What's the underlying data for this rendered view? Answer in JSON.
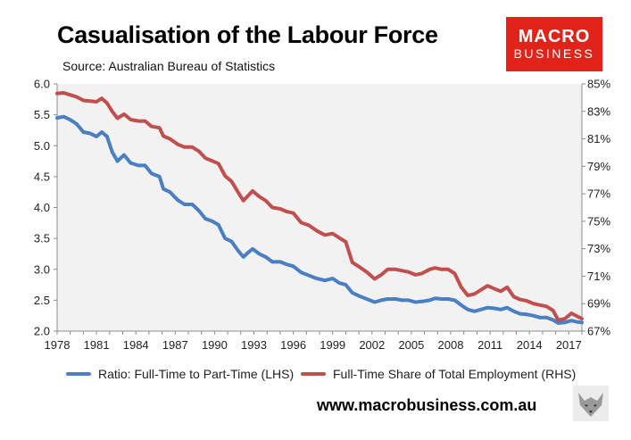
{
  "header": {
    "title": "Casualisation of the Labour Force",
    "subtitle": "Source: Australian Bureau of Statistics"
  },
  "logo": {
    "line1": "MACRO",
    "line2": "BUSINESS",
    "color": "#e2231a"
  },
  "footer": {
    "url": "www.macrobusiness.com.au",
    "icon": "wolf-logo-icon"
  },
  "chart_data": {
    "type": "line",
    "title": "Casualisation of the Labour Force",
    "xlim": [
      1978,
      2018
    ],
    "x_ticks": [
      "1978",
      "1981",
      "1984",
      "1987",
      "1990",
      "1993",
      "1996",
      "1999",
      "2002",
      "2005",
      "2008",
      "2011",
      "2014",
      "2017"
    ],
    "y_left": {
      "range": [
        2.0,
        6.0
      ],
      "ticks": [
        "2.0",
        "2.5",
        "3.0",
        "3.5",
        "4.0",
        "4.5",
        "5.0",
        "5.5",
        "6.0"
      ]
    },
    "y_right": {
      "range": [
        67,
        85
      ],
      "ticks": [
        "67%",
        "69%",
        "71%",
        "73%",
        "75%",
        "77%",
        "79%",
        "81%",
        "83%",
        "85%"
      ]
    },
    "grid": false,
    "legend_position": "bottom",
    "series": [
      {
        "name": "Ratio: Full-Time to Part-Time (LHS)",
        "axis": "left",
        "color": "#4a7fc1",
        "points": [
          [
            1978,
            5.45
          ],
          [
            1978.5,
            5.47
          ],
          [
            1979,
            5.42
          ],
          [
            1979.5,
            5.35
          ],
          [
            1980,
            5.22
          ],
          [
            1980.5,
            5.2
          ],
          [
            1981,
            5.15
          ],
          [
            1981.4,
            5.22
          ],
          [
            1981.8,
            5.15
          ],
          [
            1982.2,
            4.9
          ],
          [
            1982.6,
            4.75
          ],
          [
            1983.1,
            4.85
          ],
          [
            1983.6,
            4.72
          ],
          [
            1984.2,
            4.68
          ],
          [
            1984.7,
            4.68
          ],
          [
            1985.2,
            4.55
          ],
          [
            1985.8,
            4.5
          ],
          [
            1986.1,
            4.3
          ],
          [
            1986.6,
            4.25
          ],
          [
            1987.2,
            4.12
          ],
          [
            1987.7,
            4.05
          ],
          [
            1988.3,
            4.05
          ],
          [
            1988.8,
            3.95
          ],
          [
            1989.3,
            3.82
          ],
          [
            1989.8,
            3.78
          ],
          [
            1990.3,
            3.72
          ],
          [
            1990.8,
            3.5
          ],
          [
            1991.3,
            3.45
          ],
          [
            1991.8,
            3.3
          ],
          [
            1992.2,
            3.2
          ],
          [
            1992.6,
            3.28
          ],
          [
            1992.9,
            3.33
          ],
          [
            1993.4,
            3.25
          ],
          [
            1993.9,
            3.2
          ],
          [
            1994.4,
            3.12
          ],
          [
            1995,
            3.12
          ],
          [
            1995.5,
            3.08
          ],
          [
            1996,
            3.05
          ],
          [
            1996.6,
            2.95
          ],
          [
            1997.2,
            2.9
          ],
          [
            1997.8,
            2.85
          ],
          [
            1998.4,
            2.82
          ],
          [
            1999,
            2.85
          ],
          [
            1999.5,
            2.78
          ],
          [
            2000,
            2.75
          ],
          [
            2000.5,
            2.62
          ],
          [
            2001,
            2.57
          ],
          [
            2001.6,
            2.52
          ],
          [
            2002.2,
            2.47
          ],
          [
            2002.7,
            2.5
          ],
          [
            2003.2,
            2.52
          ],
          [
            2003.8,
            2.52
          ],
          [
            2004.3,
            2.5
          ],
          [
            2004.8,
            2.5
          ],
          [
            2005.3,
            2.47
          ],
          [
            2005.8,
            2.48
          ],
          [
            2006.4,
            2.5
          ],
          [
            2006.8,
            2.53
          ],
          [
            2007.3,
            2.52
          ],
          [
            2007.8,
            2.52
          ],
          [
            2008.3,
            2.5
          ],
          [
            2008.8,
            2.42
          ],
          [
            2009.3,
            2.35
          ],
          [
            2009.8,
            2.32
          ],
          [
            2010.3,
            2.35
          ],
          [
            2010.8,
            2.38
          ],
          [
            2011.3,
            2.37
          ],
          [
            2011.8,
            2.35
          ],
          [
            2012.3,
            2.38
          ],
          [
            2012.8,
            2.32
          ],
          [
            2013.3,
            2.28
          ],
          [
            2013.8,
            2.27
          ],
          [
            2014.3,
            2.25
          ],
          [
            2014.8,
            2.22
          ],
          [
            2015.3,
            2.22
          ],
          [
            2015.8,
            2.18
          ],
          [
            2016.2,
            2.13
          ],
          [
            2016.7,
            2.14
          ],
          [
            2017.2,
            2.17
          ],
          [
            2017.6,
            2.15
          ],
          [
            2018,
            2.14
          ]
        ]
      },
      {
        "name": "Full-Time Share of Total Employment (RHS)",
        "axis": "right",
        "color": "#c0504d",
        "points": [
          [
            1978,
            84.3
          ],
          [
            1978.5,
            84.35
          ],
          [
            1979,
            84.2
          ],
          [
            1979.5,
            84.05
          ],
          [
            1980,
            83.8
          ],
          [
            1980.5,
            83.75
          ],
          [
            1981,
            83.7
          ],
          [
            1981.4,
            83.95
          ],
          [
            1981.8,
            83.6
          ],
          [
            1982.2,
            83.0
          ],
          [
            1982.6,
            82.5
          ],
          [
            1983.1,
            82.8
          ],
          [
            1983.6,
            82.4
          ],
          [
            1984.2,
            82.3
          ],
          [
            1984.7,
            82.3
          ],
          [
            1985.2,
            81.9
          ],
          [
            1985.8,
            81.8
          ],
          [
            1986.1,
            81.2
          ],
          [
            1986.6,
            81.0
          ],
          [
            1987.2,
            80.6
          ],
          [
            1987.7,
            80.4
          ],
          [
            1988.3,
            80.4
          ],
          [
            1988.8,
            80.1
          ],
          [
            1989.3,
            79.6
          ],
          [
            1989.8,
            79.4
          ],
          [
            1990.3,
            79.2
          ],
          [
            1990.8,
            78.3
          ],
          [
            1991.3,
            77.9
          ],
          [
            1991.8,
            77.1
          ],
          [
            1992.2,
            76.5
          ],
          [
            1992.6,
            76.9
          ],
          [
            1992.9,
            77.2
          ],
          [
            1993.4,
            76.8
          ],
          [
            1993.9,
            76.5
          ],
          [
            1994.4,
            76.0
          ],
          [
            1995,
            75.9
          ],
          [
            1995.5,
            75.7
          ],
          [
            1996,
            75.6
          ],
          [
            1996.6,
            74.9
          ],
          [
            1997.2,
            74.7
          ],
          [
            1997.8,
            74.3
          ],
          [
            1998.4,
            74.0
          ],
          [
            1999,
            74.1
          ],
          [
            1999.5,
            73.8
          ],
          [
            2000,
            73.5
          ],
          [
            2000.5,
            72.0
          ],
          [
            2001,
            71.7
          ],
          [
            2001.6,
            71.3
          ],
          [
            2002.2,
            70.8
          ],
          [
            2002.7,
            71.1
          ],
          [
            2003.2,
            71.5
          ],
          [
            2003.8,
            71.5
          ],
          [
            2004.3,
            71.4
          ],
          [
            2004.8,
            71.3
          ],
          [
            2005.3,
            71.1
          ],
          [
            2005.8,
            71.2
          ],
          [
            2006.4,
            71.5
          ],
          [
            2006.8,
            71.6
          ],
          [
            2007.3,
            71.5
          ],
          [
            2007.8,
            71.5
          ],
          [
            2008.3,
            71.2
          ],
          [
            2008.8,
            70.2
          ],
          [
            2009.3,
            69.6
          ],
          [
            2009.8,
            69.7
          ],
          [
            2010.3,
            70.0
          ],
          [
            2010.8,
            70.3
          ],
          [
            2011.3,
            70.1
          ],
          [
            2011.8,
            69.9
          ],
          [
            2012.3,
            70.2
          ],
          [
            2012.8,
            69.5
          ],
          [
            2013.3,
            69.3
          ],
          [
            2013.8,
            69.2
          ],
          [
            2014.3,
            69.0
          ],
          [
            2014.8,
            68.9
          ],
          [
            2015.3,
            68.8
          ],
          [
            2015.8,
            68.5
          ],
          [
            2016.2,
            67.8
          ],
          [
            2016.7,
            67.9
          ],
          [
            2017.2,
            68.3
          ],
          [
            2017.6,
            68.1
          ],
          [
            2018,
            67.9
          ]
        ]
      }
    ]
  }
}
